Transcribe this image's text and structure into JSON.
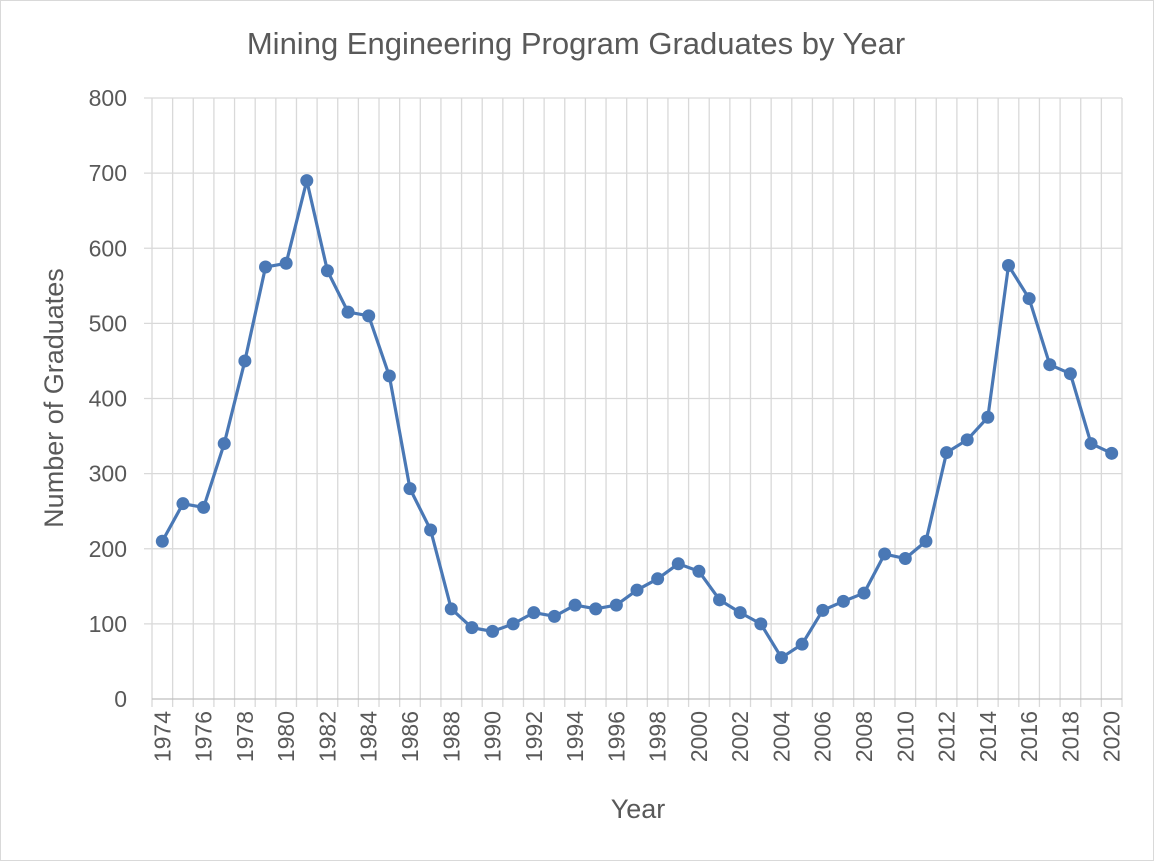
{
  "chart_data": {
    "type": "line",
    "title": "Mining Engineering Program Graduates by Year",
    "xlabel": "Year",
    "ylabel": "Number of Graduates",
    "ylim": [
      0,
      800
    ],
    "yticks": [
      0,
      100,
      200,
      300,
      400,
      500,
      600,
      700,
      800
    ],
    "x_tick_labels": [
      "1974",
      "1976",
      "1978",
      "1980",
      "1982",
      "1984",
      "1986",
      "1988",
      "1990",
      "1992",
      "1994",
      "1996",
      "1998",
      "2000",
      "2002",
      "2004",
      "2006",
      "2008",
      "2010",
      "2012",
      "2014",
      "2016",
      "2018",
      "2020"
    ],
    "grid": true,
    "legend": "none",
    "series_color": "#4a78b5",
    "series": [
      {
        "x": [
          1974,
          1975,
          1976,
          1977,
          1978,
          1979,
          1980,
          1981,
          1982,
          1983,
          1984,
          1985,
          1986,
          1987,
          1988,
          1989,
          1990,
          1991,
          1992,
          1993,
          1994,
          1995,
          1996,
          1997,
          1998,
          1999,
          2000,
          2001,
          2002,
          2003,
          2004,
          2005,
          2006,
          2007,
          2008,
          2009,
          2010,
          2011,
          2012,
          2013,
          2014,
          2015,
          2016,
          2017,
          2018,
          2019,
          2020
        ],
        "values": [
          210,
          260,
          255,
          340,
          450,
          575,
          580,
          690,
          570,
          515,
          510,
          430,
          280,
          225,
          120,
          95,
          90,
          100,
          115,
          110,
          125,
          120,
          125,
          145,
          160,
          180,
          170,
          132,
          115,
          100,
          55,
          73,
          118,
          130,
          141,
          193,
          187,
          210,
          328,
          345,
          375,
          577,
          533,
          445,
          433,
          340,
          327
        ]
      }
    ]
  }
}
